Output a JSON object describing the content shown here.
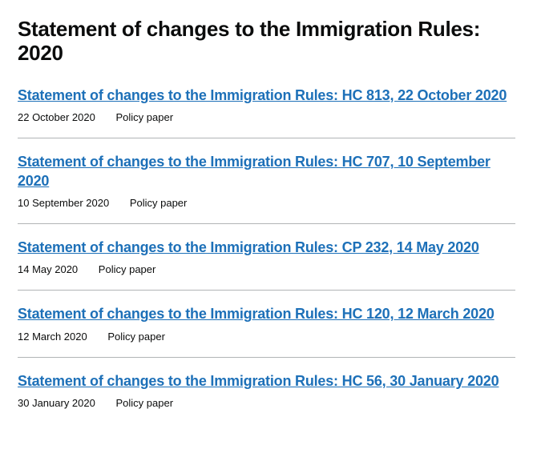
{
  "page": {
    "title": "Statement of changes to the Immigration Rules: 2020"
  },
  "colors": {
    "text": "#0b0c0c",
    "link": "#1d70b8",
    "border": "#b1b4b6",
    "background": "#ffffff"
  },
  "documents": [
    {
      "title": "Statement of changes to the Immigration Rules: HC 813, 22 October 2020",
      "date": "22 October 2020",
      "type": "Policy paper"
    },
    {
      "title": "Statement of changes to the Immigration Rules: HC 707, 10 September 2020",
      "date": "10 September 2020",
      "type": "Policy paper"
    },
    {
      "title": "Statement of changes to the Immigration Rules: CP 232, 14 May 2020",
      "date": "14 May 2020",
      "type": "Policy paper"
    },
    {
      "title": "Statement of changes to the Immigration Rules: HC 120, 12 March 2020",
      "date": "12 March 2020",
      "type": "Policy paper"
    },
    {
      "title": "Statement of changes to the Immigration Rules: HC 56, 30 January 2020",
      "date": "30 January 2020",
      "type": "Policy paper"
    }
  ]
}
